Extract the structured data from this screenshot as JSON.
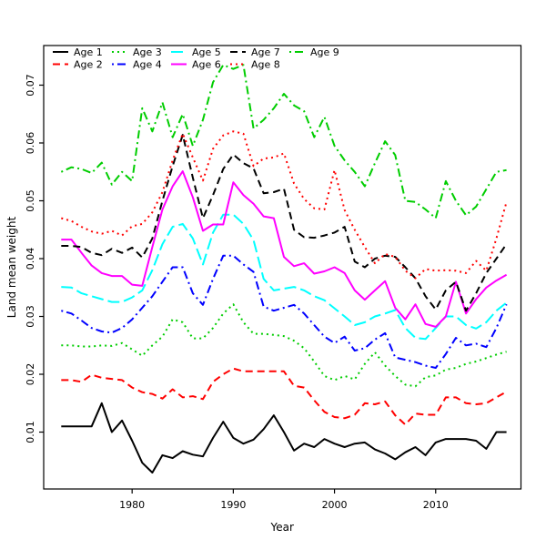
{
  "figure": {
    "background": "#ffffff",
    "frame_color": "#000000"
  },
  "chart_data": {
    "type": "line",
    "title": "",
    "xlabel": "Year",
    "ylabel": "Land mean weight",
    "x_ticks": [
      1980,
      1990,
      2000,
      2010
    ],
    "y_ticks": [
      0.01,
      0.02,
      0.03,
      0.04,
      0.05,
      0.06,
      0.07
    ],
    "xlim": [
      1971.26,
      2018.43
    ],
    "ylim": [
      0.00016,
      0.07685
    ],
    "grid": false,
    "legend_position": "top-left-inside",
    "legend_columns": 5,
    "x": [
      1973,
      1974,
      1975,
      1976,
      1977,
      1978,
      1979,
      1980,
      1981,
      1982,
      1983,
      1984,
      1985,
      1986,
      1987,
      1988,
      1989,
      1990,
      1991,
      1992,
      1993,
      1994,
      1995,
      1996,
      1997,
      1998,
      1999,
      2000,
      2001,
      2002,
      2003,
      2004,
      2005,
      2006,
      2007,
      2008,
      2009,
      2010,
      2011,
      2012,
      2013,
      2014,
      2015,
      2016,
      2017
    ],
    "series": [
      {
        "name": "Age 1",
        "color": "#000000",
        "dash": "solid",
        "values": [
          0.011,
          0.011,
          0.011,
          0.011,
          0.015,
          0.01,
          0.012,
          0.0085,
          0.0047,
          0.003,
          0.006,
          0.0055,
          0.0067,
          0.0061,
          0.0058,
          0.009,
          0.0118,
          0.009,
          0.008,
          0.0087,
          0.0105,
          0.0129,
          0.01,
          0.0068,
          0.008,
          0.0074,
          0.0088,
          0.008,
          0.0074,
          0.008,
          0.0082,
          0.007,
          0.0063,
          0.0053,
          0.0065,
          0.0074,
          0.006,
          0.0082,
          0.0088,
          0.0088,
          0.0088,
          0.0085,
          0.0071,
          0.01,
          0.01
        ]
      },
      {
        "name": "Age 2",
        "color": "#FF0000",
        "dash": "dashed",
        "values": [
          0.019,
          0.019,
          0.0187,
          0.0199,
          0.0194,
          0.0192,
          0.019,
          0.0177,
          0.0169,
          0.0166,
          0.0158,
          0.0174,
          0.016,
          0.0162,
          0.0157,
          0.0187,
          0.02,
          0.021,
          0.0205,
          0.0205,
          0.0205,
          0.0205,
          0.0205,
          0.018,
          0.0177,
          0.0155,
          0.0135,
          0.0126,
          0.0124,
          0.013,
          0.015,
          0.0148,
          0.0153,
          0.0129,
          0.0113,
          0.0132,
          0.013,
          0.013,
          0.016,
          0.016,
          0.015,
          0.0148,
          0.015,
          0.016,
          0.017
        ]
      },
      {
        "name": "Age 3",
        "color": "#00CD00",
        "dash": "dotted",
        "values": [
          0.025,
          0.025,
          0.0248,
          0.0248,
          0.025,
          0.0249,
          0.0254,
          0.0243,
          0.0232,
          0.025,
          0.0265,
          0.0295,
          0.029,
          0.0262,
          0.0262,
          0.028,
          0.0305,
          0.0321,
          0.029,
          0.027,
          0.027,
          0.0268,
          0.0266,
          0.0258,
          0.0245,
          0.0222,
          0.0197,
          0.019,
          0.0197,
          0.0191,
          0.0218,
          0.0238,
          0.0215,
          0.0197,
          0.0182,
          0.0179,
          0.0195,
          0.0198,
          0.0208,
          0.0211,
          0.0218,
          0.0222,
          0.0228,
          0.0234,
          0.0239
        ]
      },
      {
        "name": "Age 4",
        "color": "#0000FF",
        "dash": "dotdash",
        "values": [
          0.031,
          0.0305,
          0.0293,
          0.028,
          0.0274,
          0.0272,
          0.028,
          0.0295,
          0.0315,
          0.0335,
          0.036,
          0.0385,
          0.0385,
          0.034,
          0.032,
          0.0365,
          0.0405,
          0.0405,
          0.039,
          0.0377,
          0.0317,
          0.031,
          0.0315,
          0.032,
          0.0305,
          0.0285,
          0.0265,
          0.0254,
          0.0265,
          0.0241,
          0.0245,
          0.026,
          0.0271,
          0.0229,
          0.0225,
          0.0221,
          0.0215,
          0.0211,
          0.0235,
          0.0263,
          0.025,
          0.0253,
          0.0247,
          0.028,
          0.0321
        ]
      },
      {
        "name": "Age 5",
        "color": "#00FFFF",
        "dash": "longdash",
        "values": [
          0.0351,
          0.035,
          0.034,
          0.0335,
          0.033,
          0.0325,
          0.0325,
          0.0333,
          0.0345,
          0.038,
          0.0425,
          0.0455,
          0.046,
          0.0435,
          0.039,
          0.0445,
          0.0476,
          0.0476,
          0.046,
          0.0432,
          0.0365,
          0.0345,
          0.0348,
          0.0351,
          0.0345,
          0.0335,
          0.0328,
          0.0314,
          0.03,
          0.0285,
          0.029,
          0.03,
          0.0305,
          0.0311,
          0.028,
          0.0263,
          0.0261,
          0.028,
          0.03,
          0.03,
          0.0285,
          0.0279,
          0.029,
          0.031,
          0.0324
        ]
      },
      {
        "name": "Age 6",
        "color": "#FF00FF",
        "dash": "solid",
        "values": [
          0.0433,
          0.0433,
          0.041,
          0.0388,
          0.0375,
          0.037,
          0.037,
          0.0355,
          0.0353,
          0.042,
          0.0485,
          0.0525,
          0.0551,
          0.0506,
          0.0448,
          0.0459,
          0.0459,
          0.0532,
          0.051,
          0.0495,
          0.0473,
          0.047,
          0.0403,
          0.0387,
          0.0392,
          0.0374,
          0.0378,
          0.0385,
          0.0375,
          0.0345,
          0.0329,
          0.0345,
          0.0361,
          0.0315,
          0.0295,
          0.0321,
          0.0287,
          0.0282,
          0.03,
          0.036,
          0.0305,
          0.033,
          0.035,
          0.0362,
          0.0372
        ]
      },
      {
        "name": "Age 7",
        "color": "#000000",
        "dash": "dashed",
        "values": [
          0.0422,
          0.0422,
          0.042,
          0.041,
          0.0406,
          0.0417,
          0.041,
          0.0419,
          0.0402,
          0.0435,
          0.05,
          0.056,
          0.0614,
          0.054,
          0.047,
          0.051,
          0.0555,
          0.058,
          0.0565,
          0.0556,
          0.0513,
          0.0515,
          0.0521,
          0.045,
          0.0437,
          0.0436,
          0.044,
          0.0445,
          0.0455,
          0.0395,
          0.0385,
          0.04,
          0.0405,
          0.0403,
          0.0385,
          0.0366,
          0.0335,
          0.0312,
          0.0345,
          0.036,
          0.031,
          0.034,
          0.0375,
          0.04,
          0.0425
        ]
      },
      {
        "name": "Age 8",
        "color": "#FF0000",
        "dash": "dotted",
        "values": [
          0.047,
          0.0465,
          0.0455,
          0.0447,
          0.0443,
          0.0448,
          0.044,
          0.0456,
          0.046,
          0.048,
          0.0515,
          0.057,
          0.0616,
          0.0575,
          0.0535,
          0.059,
          0.0613,
          0.062,
          0.0616,
          0.056,
          0.0573,
          0.0575,
          0.0582,
          0.053,
          0.0503,
          0.0487,
          0.0485,
          0.0553,
          0.0484,
          0.045,
          0.042,
          0.0392,
          0.0408,
          0.0403,
          0.0379,
          0.0366,
          0.0382,
          0.0379,
          0.038,
          0.0379,
          0.0375,
          0.0396,
          0.0379,
          0.0435,
          0.0498
        ]
      },
      {
        "name": "Age 9",
        "color": "#00CD00",
        "dash": "dotdash",
        "values": [
          0.055,
          0.0558,
          0.0555,
          0.0548,
          0.0566,
          0.0528,
          0.055,
          0.0534,
          0.066,
          0.062,
          0.067,
          0.061,
          0.065,
          0.0595,
          0.064,
          0.0705,
          0.0735,
          0.0728,
          0.0735,
          0.0625,
          0.064,
          0.066,
          0.0685,
          0.0665,
          0.0655,
          0.061,
          0.0645,
          0.0595,
          0.057,
          0.055,
          0.0525,
          0.0565,
          0.0603,
          0.0579,
          0.05,
          0.0498,
          0.0485,
          0.047,
          0.0534,
          0.05,
          0.0475,
          0.049,
          0.052,
          0.055,
          0.0553
        ]
      }
    ]
  }
}
